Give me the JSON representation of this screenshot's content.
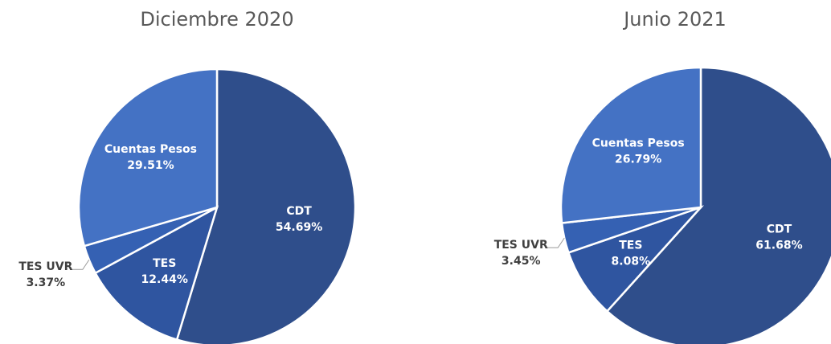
{
  "chart_data": [
    {
      "type": "pie",
      "title": "Diciembre 2020",
      "categories": [
        "CDT",
        "TES",
        "TES UVR",
        "Cuentas Pesos"
      ],
      "values": [
        54.69,
        12.44,
        3.37,
        29.51
      ],
      "value_labels": [
        "54.69%",
        "12.44%",
        "3.37%",
        "29.51%"
      ],
      "colors": [
        "#2f4e8b",
        "#2f55a0",
        "#3561b3",
        "#4472c4"
      ]
    },
    {
      "type": "pie",
      "title": "Junio 2021",
      "categories": [
        "CDT",
        "TES",
        "TES UVR",
        "Cuentas Pesos"
      ],
      "values": [
        61.68,
        8.08,
        3.45,
        26.79
      ],
      "value_labels": [
        "61.68%",
        "8.08%",
        "3.45%",
        "26.79%"
      ],
      "colors": [
        "#2f4e8b",
        "#2f55a0",
        "#3561b3",
        "#4472c4"
      ]
    }
  ]
}
